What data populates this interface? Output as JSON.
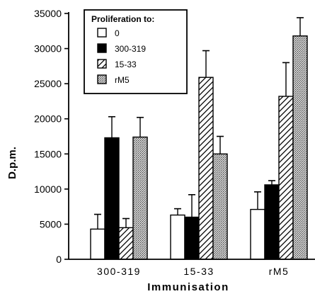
{
  "chart_data": {
    "type": "bar",
    "xlabel": "Immunisation",
    "ylabel": "D.p.m.",
    "ylim": [
      0,
      35000
    ],
    "yticks": [
      0,
      5000,
      10000,
      15000,
      20000,
      25000,
      30000,
      35000
    ],
    "categories": [
      "300-319",
      "15-33",
      "rM5"
    ],
    "legend": {
      "title": "Proliferation to:",
      "placement": "top-left"
    },
    "series": [
      {
        "name": "0",
        "pattern": "open",
        "values": [
          4300,
          6300,
          7100
        ],
        "errors": [
          2100,
          900,
          2500
        ]
      },
      {
        "name": "300-319",
        "pattern": "solid",
        "values": [
          17300,
          6000,
          10600
        ],
        "errors": [
          3000,
          3200,
          600
        ]
      },
      {
        "name": "15-33",
        "pattern": "hatched",
        "values": [
          4500,
          25900,
          23200
        ],
        "errors": [
          1300,
          3800,
          4800
        ]
      },
      {
        "name": "rM5",
        "pattern": "stippled",
        "values": [
          17400,
          15000,
          31800
        ],
        "errors": [
          2800,
          2500,
          2600
        ]
      }
    ]
  }
}
